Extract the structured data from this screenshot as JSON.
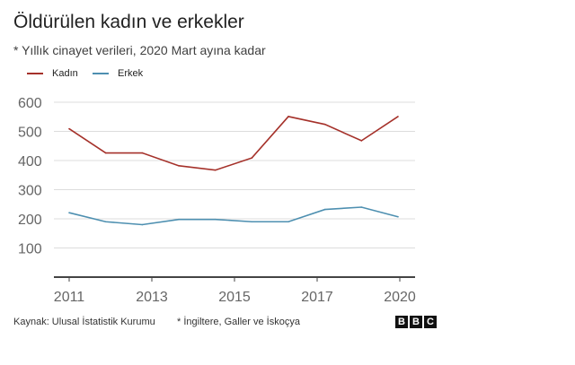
{
  "chart_data": {
    "type": "line",
    "title": "Öldürülen kadın ve erkekler",
    "subtitle": "* Yıllık cinayet verileri, 2020 Mart ayına kadar",
    "x_tick_labels": [
      "2011",
      "2013",
      "2015",
      "2017",
      "2020"
    ],
    "y_ticks": [
      100,
      200,
      300,
      400,
      500,
      600
    ],
    "ylim": [
      0,
      600
    ],
    "grid": true,
    "legend_position": "top-left",
    "series": [
      {
        "name": "Kadın",
        "color": "#a5312a",
        "values": [
          509,
          426,
          426,
          382,
          367,
          409,
          551,
          524,
          468,
          551
        ]
      },
      {
        "name": "Erkek",
        "color": "#4d8fb0",
        "values": [
          221,
          190,
          180,
          198,
          198,
          190,
          190,
          232,
          240,
          207
        ]
      }
    ]
  },
  "footer": {
    "source": "Kaynak: Ulusal İstatistik Kurumu",
    "note": "* İngiltere, Galler ve İskoçya",
    "logo": [
      "B",
      "B",
      "C"
    ]
  }
}
